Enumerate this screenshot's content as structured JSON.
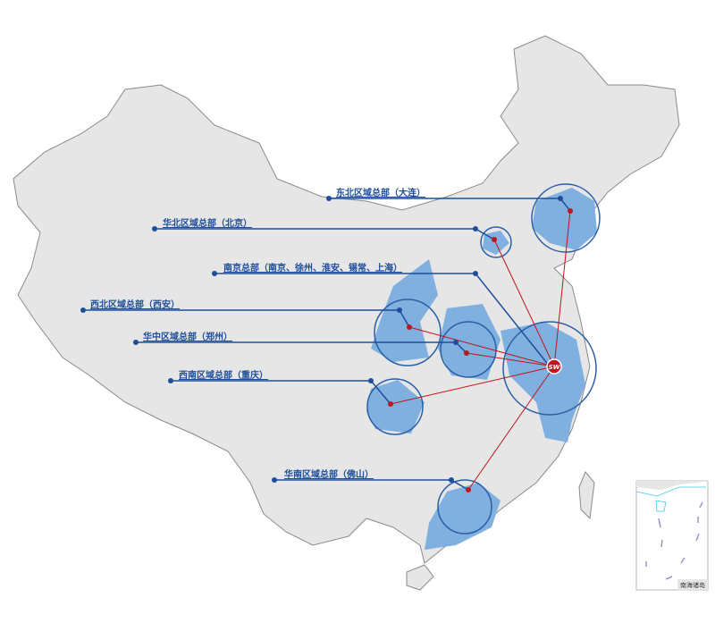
{
  "colors": {
    "land": "#e6e6e6",
    "border": "#8a8a8a",
    "region": "#7fb0df",
    "line_blue": "#1e4e9a",
    "line_red": "#c0141e",
    "circle": "#2a5fa8"
  },
  "hub": {
    "logo_text": "SW"
  },
  "regions": [
    {
      "label": "东北区域总部（大连）"
    },
    {
      "label": "华北区域总部（北京）"
    },
    {
      "label": "南京总部（南京、徐州、淮安、锡常、上海）"
    },
    {
      "label": "西北区域总部（西安）"
    },
    {
      "label": "华中区域总部（郑州）"
    },
    {
      "label": "西南区域总部（重庆）"
    },
    {
      "label": "华南区域总部（佛山）"
    }
  ],
  "inset": {
    "label": "南海诸岛"
  }
}
